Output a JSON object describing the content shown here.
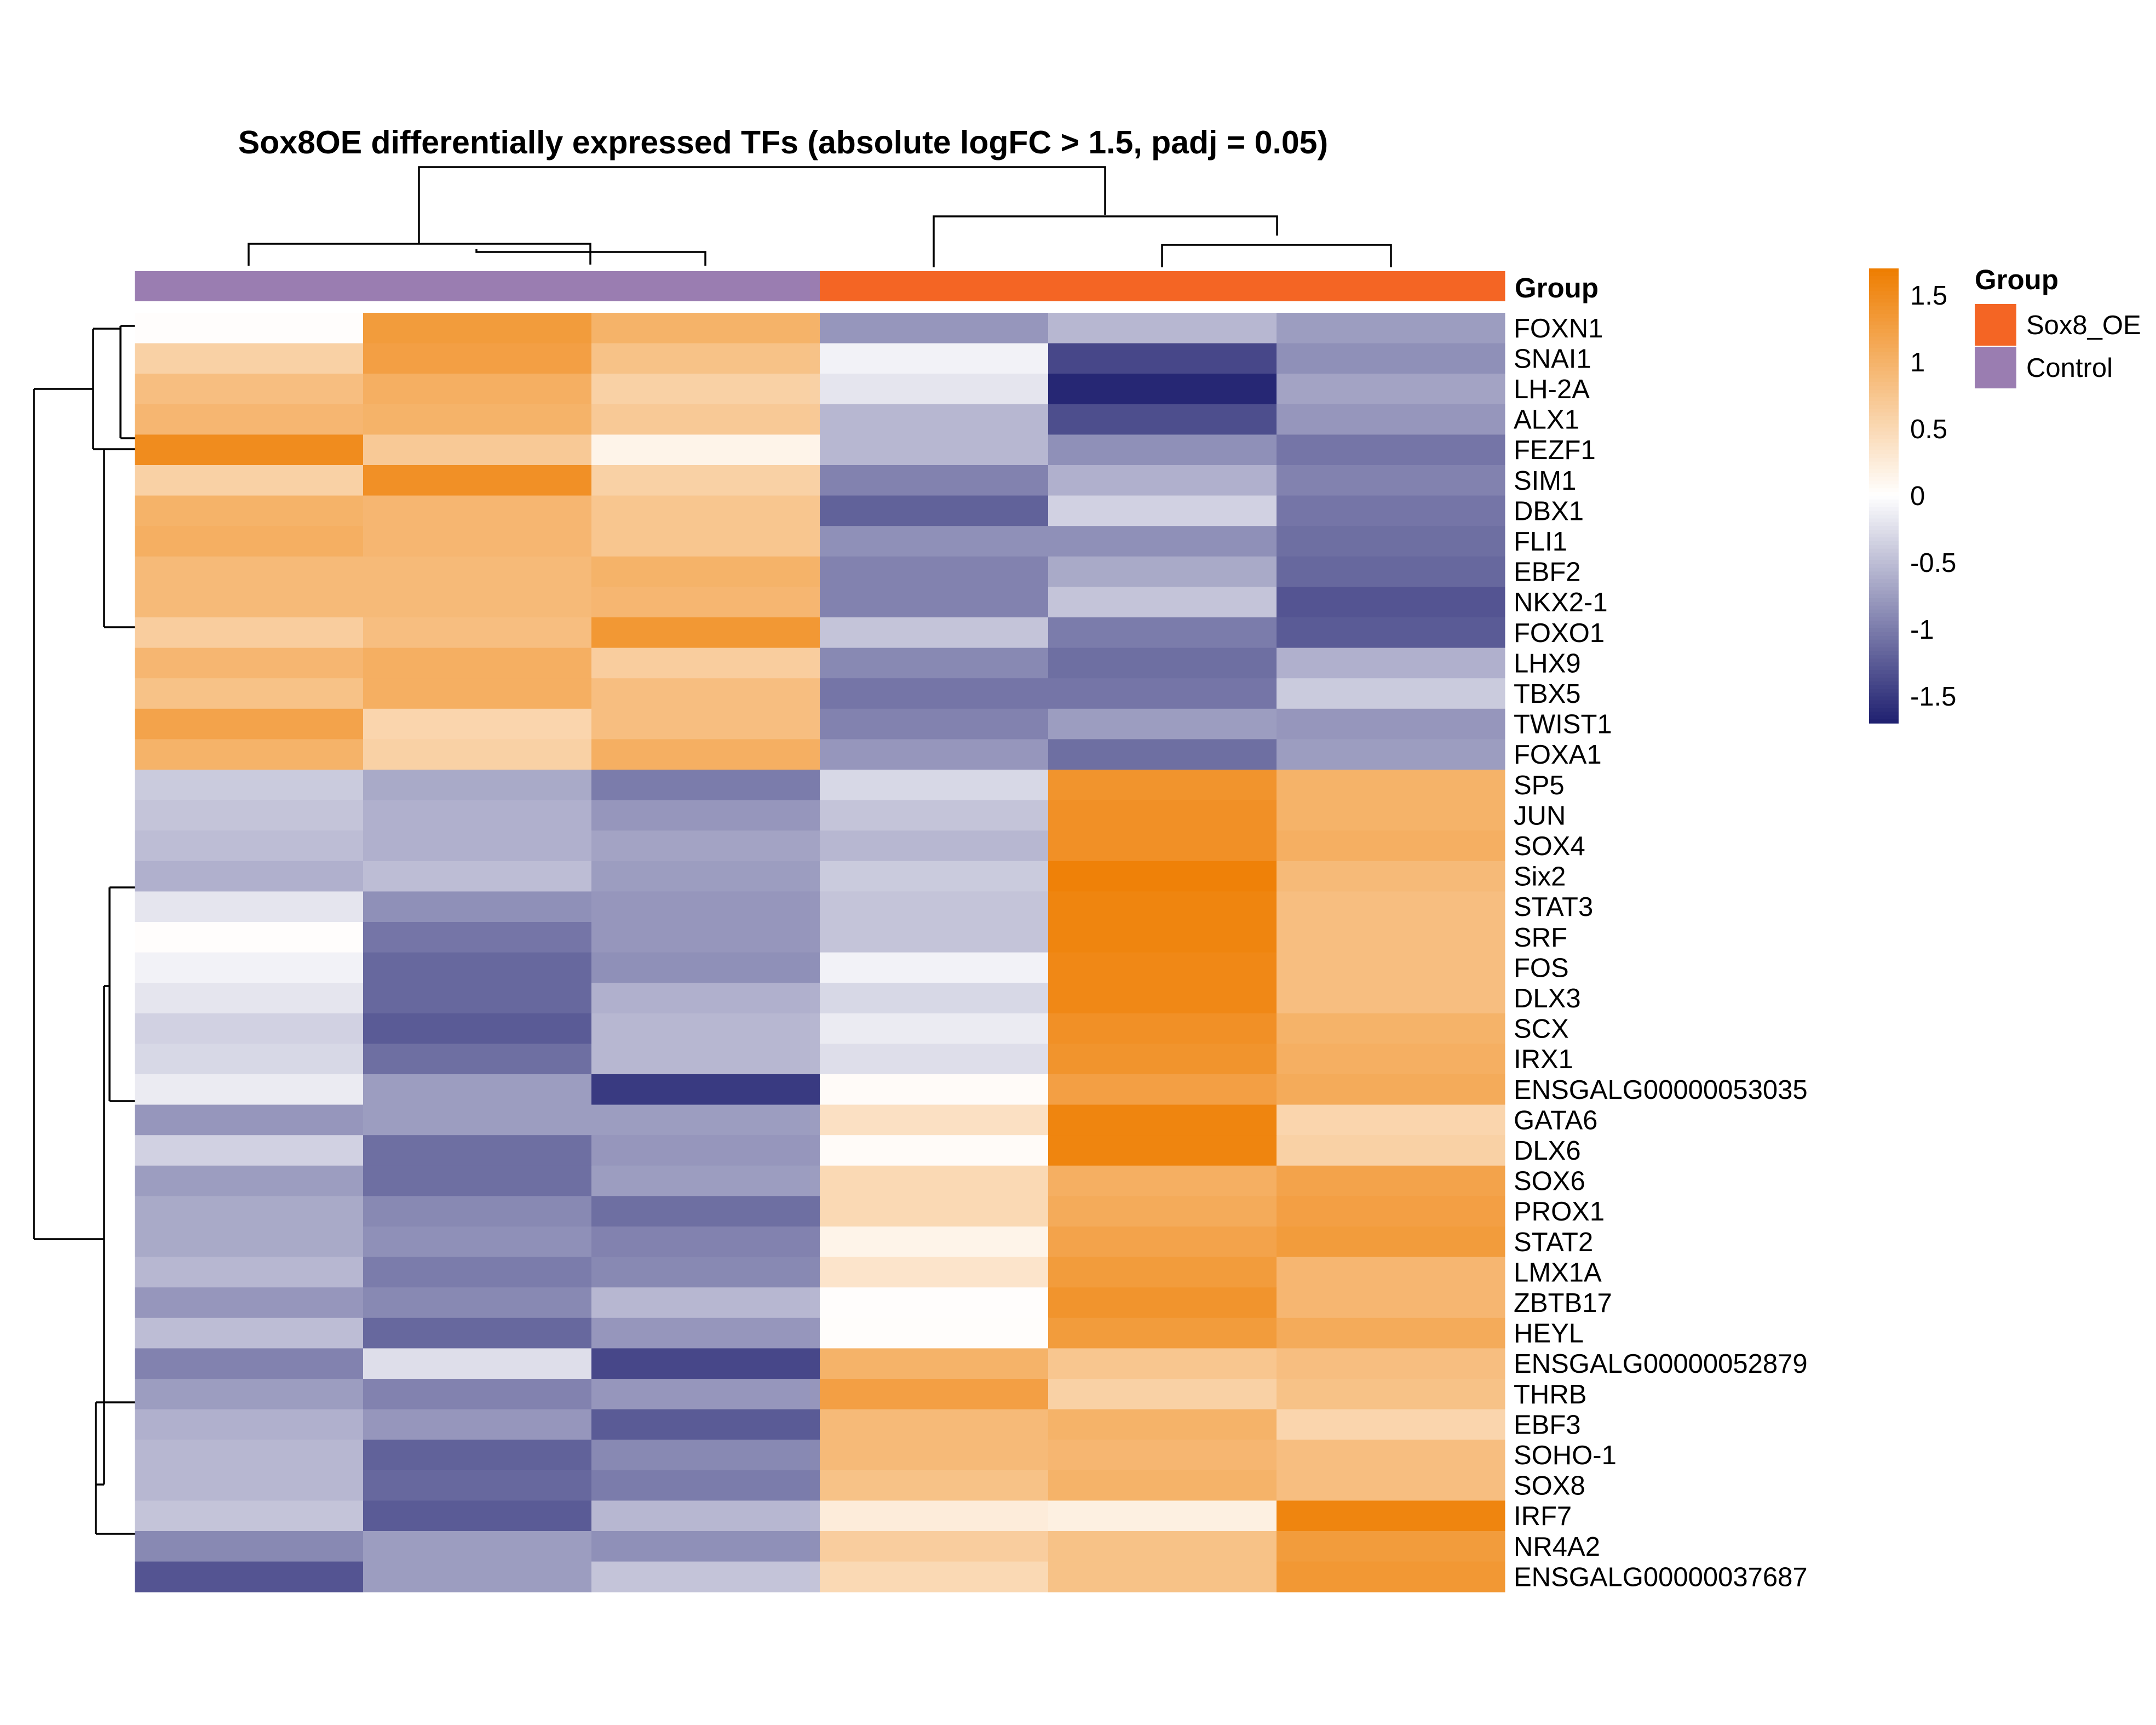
{
  "chart_data": {
    "type": "heatmap",
    "title": "Sox8OE differentially expressed TFs (absolute logFC > 1.5, padj = 0.05)",
    "annotation_label": "Group",
    "column_groups": [
      "Control",
      "Control",
      "Control",
      "Sox8_OE",
      "Sox8_OE",
      "Sox8_OE"
    ],
    "rows": [
      "FOXN1",
      "SNAI1",
      "LH-2A",
      "ALX1",
      "FEZF1",
      "SIM1",
      "DBX1",
      "FLI1",
      "EBF2",
      "NKX2-1",
      "FOXO1",
      "LHX9",
      "TBX5",
      "TWIST1",
      "FOXA1",
      "SP5",
      "JUN",
      "SOX4",
      "Six2",
      "STAT3",
      "SRF",
      "FOS",
      "DLX3",
      "SCX",
      "IRX1",
      "ENSGALG00000053035",
      "GATA6",
      "DLX6",
      "SOX6",
      "PROX1",
      "STAT2",
      "LMX1A",
      "ZBTB17",
      "HEYL",
      "ENSGALG00000052879",
      "THRB",
      "EBF3",
      "SOHO-1",
      "SOX8",
      "IRF7",
      "NR4A2",
      "ENSGALG00000037687"
    ],
    "values": [
      [
        0.02,
        1.3,
        1.0,
        -0.8,
        -0.55,
        -0.75
      ],
      [
        0.6,
        1.25,
        0.8,
        -0.1,
        -1.4,
        -0.85
      ],
      [
        0.85,
        1.05,
        0.6,
        -0.2,
        -1.65,
        -0.7
      ],
      [
        0.95,
        1.0,
        0.7,
        -0.55,
        -1.35,
        -0.8
      ],
      [
        1.5,
        0.7,
        0.15,
        -0.55,
        -0.85,
        -1.05
      ],
      [
        0.6,
        1.45,
        0.6,
        -0.95,
        -0.6,
        -0.95
      ],
      [
        1.0,
        0.95,
        0.75,
        -1.2,
        -0.35,
        -1.05
      ],
      [
        1.05,
        0.95,
        0.75,
        -0.85,
        -0.85,
        -1.1
      ],
      [
        0.9,
        0.9,
        1.0,
        -0.95,
        -0.65,
        -1.15
      ],
      [
        0.9,
        0.9,
        0.95,
        -0.95,
        -0.45,
        -1.3
      ],
      [
        0.65,
        0.85,
        1.35,
        -0.45,
        -1.0,
        -1.25
      ],
      [
        0.95,
        1.05,
        0.65,
        -0.9,
        -1.1,
        -0.6
      ],
      [
        0.8,
        1.05,
        0.85,
        -1.05,
        -1.05,
        -0.4
      ],
      [
        1.2,
        0.55,
        0.85,
        -0.95,
        -0.75,
        -0.8
      ],
      [
        1.0,
        0.6,
        1.05,
        -0.8,
        -1.1,
        -0.75
      ],
      [
        -0.4,
        -0.65,
        -1.0,
        -0.3,
        1.4,
        1.0
      ],
      [
        -0.45,
        -0.6,
        -0.8,
        -0.45,
        1.45,
        1.0
      ],
      [
        -0.5,
        -0.6,
        -0.7,
        -0.55,
        1.45,
        1.05
      ],
      [
        -0.6,
        -0.5,
        -0.75,
        -0.4,
        1.65,
        0.9
      ],
      [
        -0.2,
        -0.85,
        -0.8,
        -0.45,
        1.6,
        0.85
      ],
      [
        0.02,
        -1.05,
        -0.8,
        -0.45,
        1.6,
        0.85
      ],
      [
        -0.1,
        -1.15,
        -0.85,
        -0.1,
        1.55,
        0.85
      ],
      [
        -0.2,
        -1.15,
        -0.6,
        -0.3,
        1.55,
        0.85
      ],
      [
        -0.35,
        -1.25,
        -0.55,
        -0.15,
        1.45,
        1.0
      ],
      [
        -0.3,
        -1.1,
        -0.55,
        -0.25,
        1.4,
        1.05
      ],
      [
        -0.15,
        -0.75,
        -1.5,
        0.05,
        1.25,
        1.1
      ],
      [
        -0.8,
        -0.75,
        -0.75,
        0.4,
        1.6,
        0.55
      ],
      [
        -0.35,
        -1.1,
        -0.8,
        0.05,
        1.6,
        0.6
      ],
      [
        -0.75,
        -1.1,
        -0.75,
        0.5,
        1.05,
        1.2
      ],
      [
        -0.65,
        -0.9,
        -1.1,
        0.5,
        1.1,
        1.25
      ],
      [
        -0.65,
        -0.85,
        -0.95,
        0.15,
        1.2,
        1.3
      ],
      [
        -0.55,
        -1.0,
        -0.9,
        0.35,
        1.3,
        0.95
      ],
      [
        -0.8,
        -0.9,
        -0.55,
        0.02,
        1.4,
        0.95
      ],
      [
        -0.5,
        -1.15,
        -0.8,
        0.03,
        1.3,
        1.1
      ],
      [
        -0.95,
        -0.25,
        -1.4,
        1.0,
        0.75,
        0.85
      ],
      [
        -0.75,
        -0.95,
        -0.8,
        1.25,
        0.6,
        0.8
      ],
      [
        -0.6,
        -0.8,
        -1.25,
        0.9,
        1.0,
        0.55
      ],
      [
        -0.55,
        -1.2,
        -0.9,
        0.9,
        0.95,
        0.85
      ],
      [
        -0.55,
        -1.15,
        -1.0,
        0.8,
        1.0,
        0.85
      ],
      [
        -0.45,
        -1.25,
        -0.55,
        0.25,
        0.2,
        1.6
      ],
      [
        -0.9,
        -0.75,
        -0.85,
        0.65,
        0.8,
        1.3
      ],
      [
        -1.3,
        -0.75,
        -0.45,
        0.5,
        0.8,
        1.35
      ]
    ],
    "color_scale": {
      "ticks": [
        1.5,
        1,
        0.5,
        0,
        -0.5,
        -1,
        -1.5
      ],
      "tick_labels": [
        "1.5",
        "1",
        "0.5",
        "0",
        "-0.5",
        "-1",
        "-1.5"
      ],
      "min": -1.7,
      "max": 1.7,
      "low_color": "#1f2070",
      "mid_color": "#ffffff",
      "high_color": "#ee7d00"
    },
    "legend": {
      "title": "Group",
      "placement": "right",
      "entries": [
        {
          "label": "Sox8_OE",
          "color": "#f46524"
        },
        {
          "label": "Control",
          "color": "#9a7db1"
        }
      ]
    }
  }
}
